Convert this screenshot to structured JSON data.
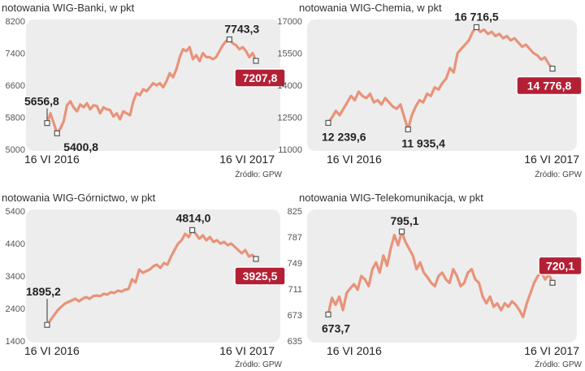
{
  "chart_data": [
    {
      "type": "line",
      "title": "notowania WIG-Banki, w pkt",
      "source": "Źródło: GPW",
      "yticks": [
        "8200",
        "7400",
        "6600",
        "5800",
        "5000"
      ],
      "ylim": [
        5000,
        8200
      ],
      "x_labels": [
        "16 VI 2016",
        "16 VI 2017"
      ],
      "series": [
        {
          "values": [
            5656.8,
            5900,
            5650,
            5400.8,
            5520,
            5700,
            6100,
            6200,
            6050,
            5950,
            6120,
            6050,
            6150,
            6000,
            6100,
            6080,
            5900,
            6050,
            6000,
            5980,
            5820,
            5900,
            5750,
            5950,
            5900,
            5850,
            6200,
            6400,
            6350,
            6500,
            6450,
            6550,
            6650,
            6600,
            6650,
            6550,
            6700,
            6900,
            6800,
            7000,
            7300,
            7500,
            7450,
            7550,
            7250,
            7350,
            7200,
            7400,
            7300,
            7300,
            7250,
            7300,
            7450,
            7600,
            7700,
            7743.3,
            7650,
            7600,
            7500,
            7550,
            7450,
            7300,
            7400,
            7207.8
          ]
        }
      ],
      "annotations": [
        {
          "label": "5656,8",
          "index": 0,
          "value": 5656.8,
          "style": "plain",
          "pos": "top-left"
        },
        {
          "label": "5400,8",
          "index": 3,
          "value": 5400.8,
          "style": "plain",
          "pos": "bottom-right"
        },
        {
          "label": "7743,3",
          "index": 55,
          "value": 7743.3,
          "style": "plain",
          "pos": "top-right"
        },
        {
          "label": "7207,8",
          "index": 63,
          "value": 7207.8,
          "style": "box",
          "pos": "below"
        }
      ]
    },
    {
      "type": "line",
      "title": "notowania WIG-Chemia, w pkt",
      "source": "Źródło: GPW",
      "yticks": [
        "17000",
        "15500",
        "14000",
        "12500",
        "11000"
      ],
      "ylim": [
        11000,
        17000
      ],
      "x_labels": [
        "16 VI 2016",
        "16 VI 2017"
      ],
      "series": [
        {
          "values": [
            12239.6,
            12500,
            12800,
            12600,
            12900,
            13200,
            13500,
            13300,
            13700,
            13500,
            13400,
            13600,
            13200,
            13300,
            13100,
            13400,
            13200,
            13000,
            12900,
            13100,
            12500,
            11935.4,
            12600,
            13000,
            13300,
            13200,
            13600,
            13500,
            13900,
            13800,
            14100,
            14300,
            14800,
            14600,
            15500,
            15700,
            15900,
            16100,
            16500,
            16716.5,
            16500,
            16600,
            16400,
            16500,
            16300,
            16400,
            16200,
            16300,
            16100,
            16200,
            16000,
            15800,
            15900,
            15700,
            15500,
            15400,
            15200,
            15300,
            15000,
            14776.8
          ]
        }
      ],
      "annotations": [
        {
          "label": "12 239,6",
          "index": 0,
          "value": 12239.6,
          "style": "plain",
          "pos": "below"
        },
        {
          "label": "11 935,4",
          "index": 21,
          "value": 11935.4,
          "style": "plain",
          "pos": "below"
        },
        {
          "label": "16 716,5",
          "index": 39,
          "value": 16716.5,
          "style": "plain",
          "pos": "top-center"
        },
        {
          "label": "14 776,8",
          "index": 59,
          "value": 14776.8,
          "style": "box",
          "pos": "below"
        }
      ]
    },
    {
      "type": "line",
      "title": "notowania WIG-Górnictwo, w pkt",
      "source": "Źródło: GPW",
      "yticks": [
        "5400",
        "4400",
        "3400",
        "2400",
        "1400"
      ],
      "ylim": [
        1400,
        5400
      ],
      "x_labels": [
        "16 VI 2016",
        "16 VI 2017"
      ],
      "series": [
        {
          "values": [
            1895.2,
            2050,
            2200,
            2350,
            2450,
            2550,
            2600,
            2650,
            2700,
            2620,
            2700,
            2750,
            2700,
            2780,
            2800,
            2780,
            2850,
            2830,
            2900,
            2880,
            2950,
            2920,
            2980,
            3000,
            3300,
            3200,
            3600,
            3500,
            3550,
            3600,
            3700,
            3750,
            3650,
            3800,
            3750,
            4000,
            4200,
            4400,
            4500,
            4700,
            4600,
            4814.0,
            4700,
            4550,
            4650,
            4500,
            4600,
            4450,
            4500,
            4400,
            4450,
            4350,
            4400,
            4300,
            4200,
            4100,
            4200,
            4000,
            4050,
            3925.5
          ]
        }
      ],
      "annotations": [
        {
          "label": "1895,2",
          "index": 0,
          "value": 1895.2,
          "style": "plain",
          "pos": "top-left"
        },
        {
          "label": "4814,0",
          "index": 41,
          "value": 4814.0,
          "style": "plain",
          "pos": "top-left"
        },
        {
          "label": "3925,5",
          "index": 59,
          "value": 3925.5,
          "style": "box",
          "pos": "below"
        }
      ]
    },
    {
      "type": "line",
      "title": "notowania WIG-Telekomunikacja, w pkt",
      "source": "Źródło: GPW",
      "yticks": [
        "825",
        "787",
        "749",
        "711",
        "673",
        "635"
      ],
      "ylim": [
        635,
        825
      ],
      "x_labels": [
        "16 VI 2016",
        "16 VI 2017"
      ],
      "series": [
        {
          "values": [
            673.7,
            698,
            688,
            700,
            680,
            705,
            712,
            718,
            710,
            730,
            725,
            715,
            740,
            750,
            735,
            760,
            745,
            770,
            790,
            775,
            795.1,
            780,
            770,
            760,
            740,
            750,
            735,
            728,
            720,
            715,
            730,
            735,
            725,
            720,
            740,
            730,
            715,
            720,
            735,
            740,
            725,
            720,
            700,
            690,
            700,
            685,
            690,
            680,
            690,
            685,
            693,
            688,
            680,
            670,
            690,
            705,
            720,
            730,
            735,
            725,
            733,
            720.1
          ]
        }
      ],
      "annotations": [
        {
          "label": "673,7",
          "index": 0,
          "value": 673.7,
          "style": "plain",
          "pos": "below"
        },
        {
          "label": "795,1",
          "index": 20,
          "value": 795.1,
          "style": "plain",
          "pos": "top-left"
        },
        {
          "label": "720,1",
          "index": 61,
          "value": 720.1,
          "style": "box",
          "pos": "above"
        }
      ]
    }
  ],
  "colors": {
    "line": "#e8937a",
    "panel": "#ededed",
    "box": "#b32035",
    "marker": "#555555"
  }
}
